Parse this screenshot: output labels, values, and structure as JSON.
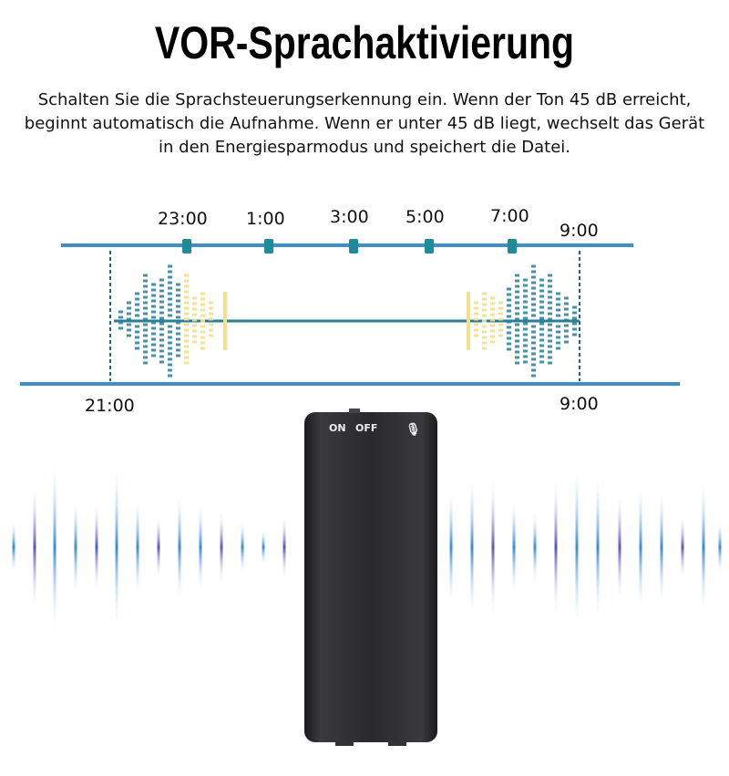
{
  "title": "VOR-Sprachaktivierung",
  "description": "Schalten Sie die Sprachsteuerungserkennung ein. Wenn der Ton 45 dB erreicht, beginnt automatisch die Aufnahme. Wenn er unter 45 dB liegt, wechselt das Gerät in den Energiesparmodus und speichert die Datei.",
  "timeline": {
    "top_labels": [
      "23:00",
      "1:00",
      "3:00",
      "5:00",
      "7:00",
      "9:00"
    ],
    "bottom_labels": [
      "21:00",
      "9:00"
    ],
    "line_color": "#3f8fc6",
    "marker_color": "#1f8a9a"
  },
  "device": {
    "on_label": "ON",
    "off_label": "OFF",
    "mic_icon": "microphone-icon",
    "body_color": "#2a2a2c"
  },
  "colors": {
    "wave_teal": "#2a7f95",
    "wave_yellow": "#f3e08a",
    "sound_blue": "#3a8ad8",
    "sound_purple": "#5a55b8"
  }
}
